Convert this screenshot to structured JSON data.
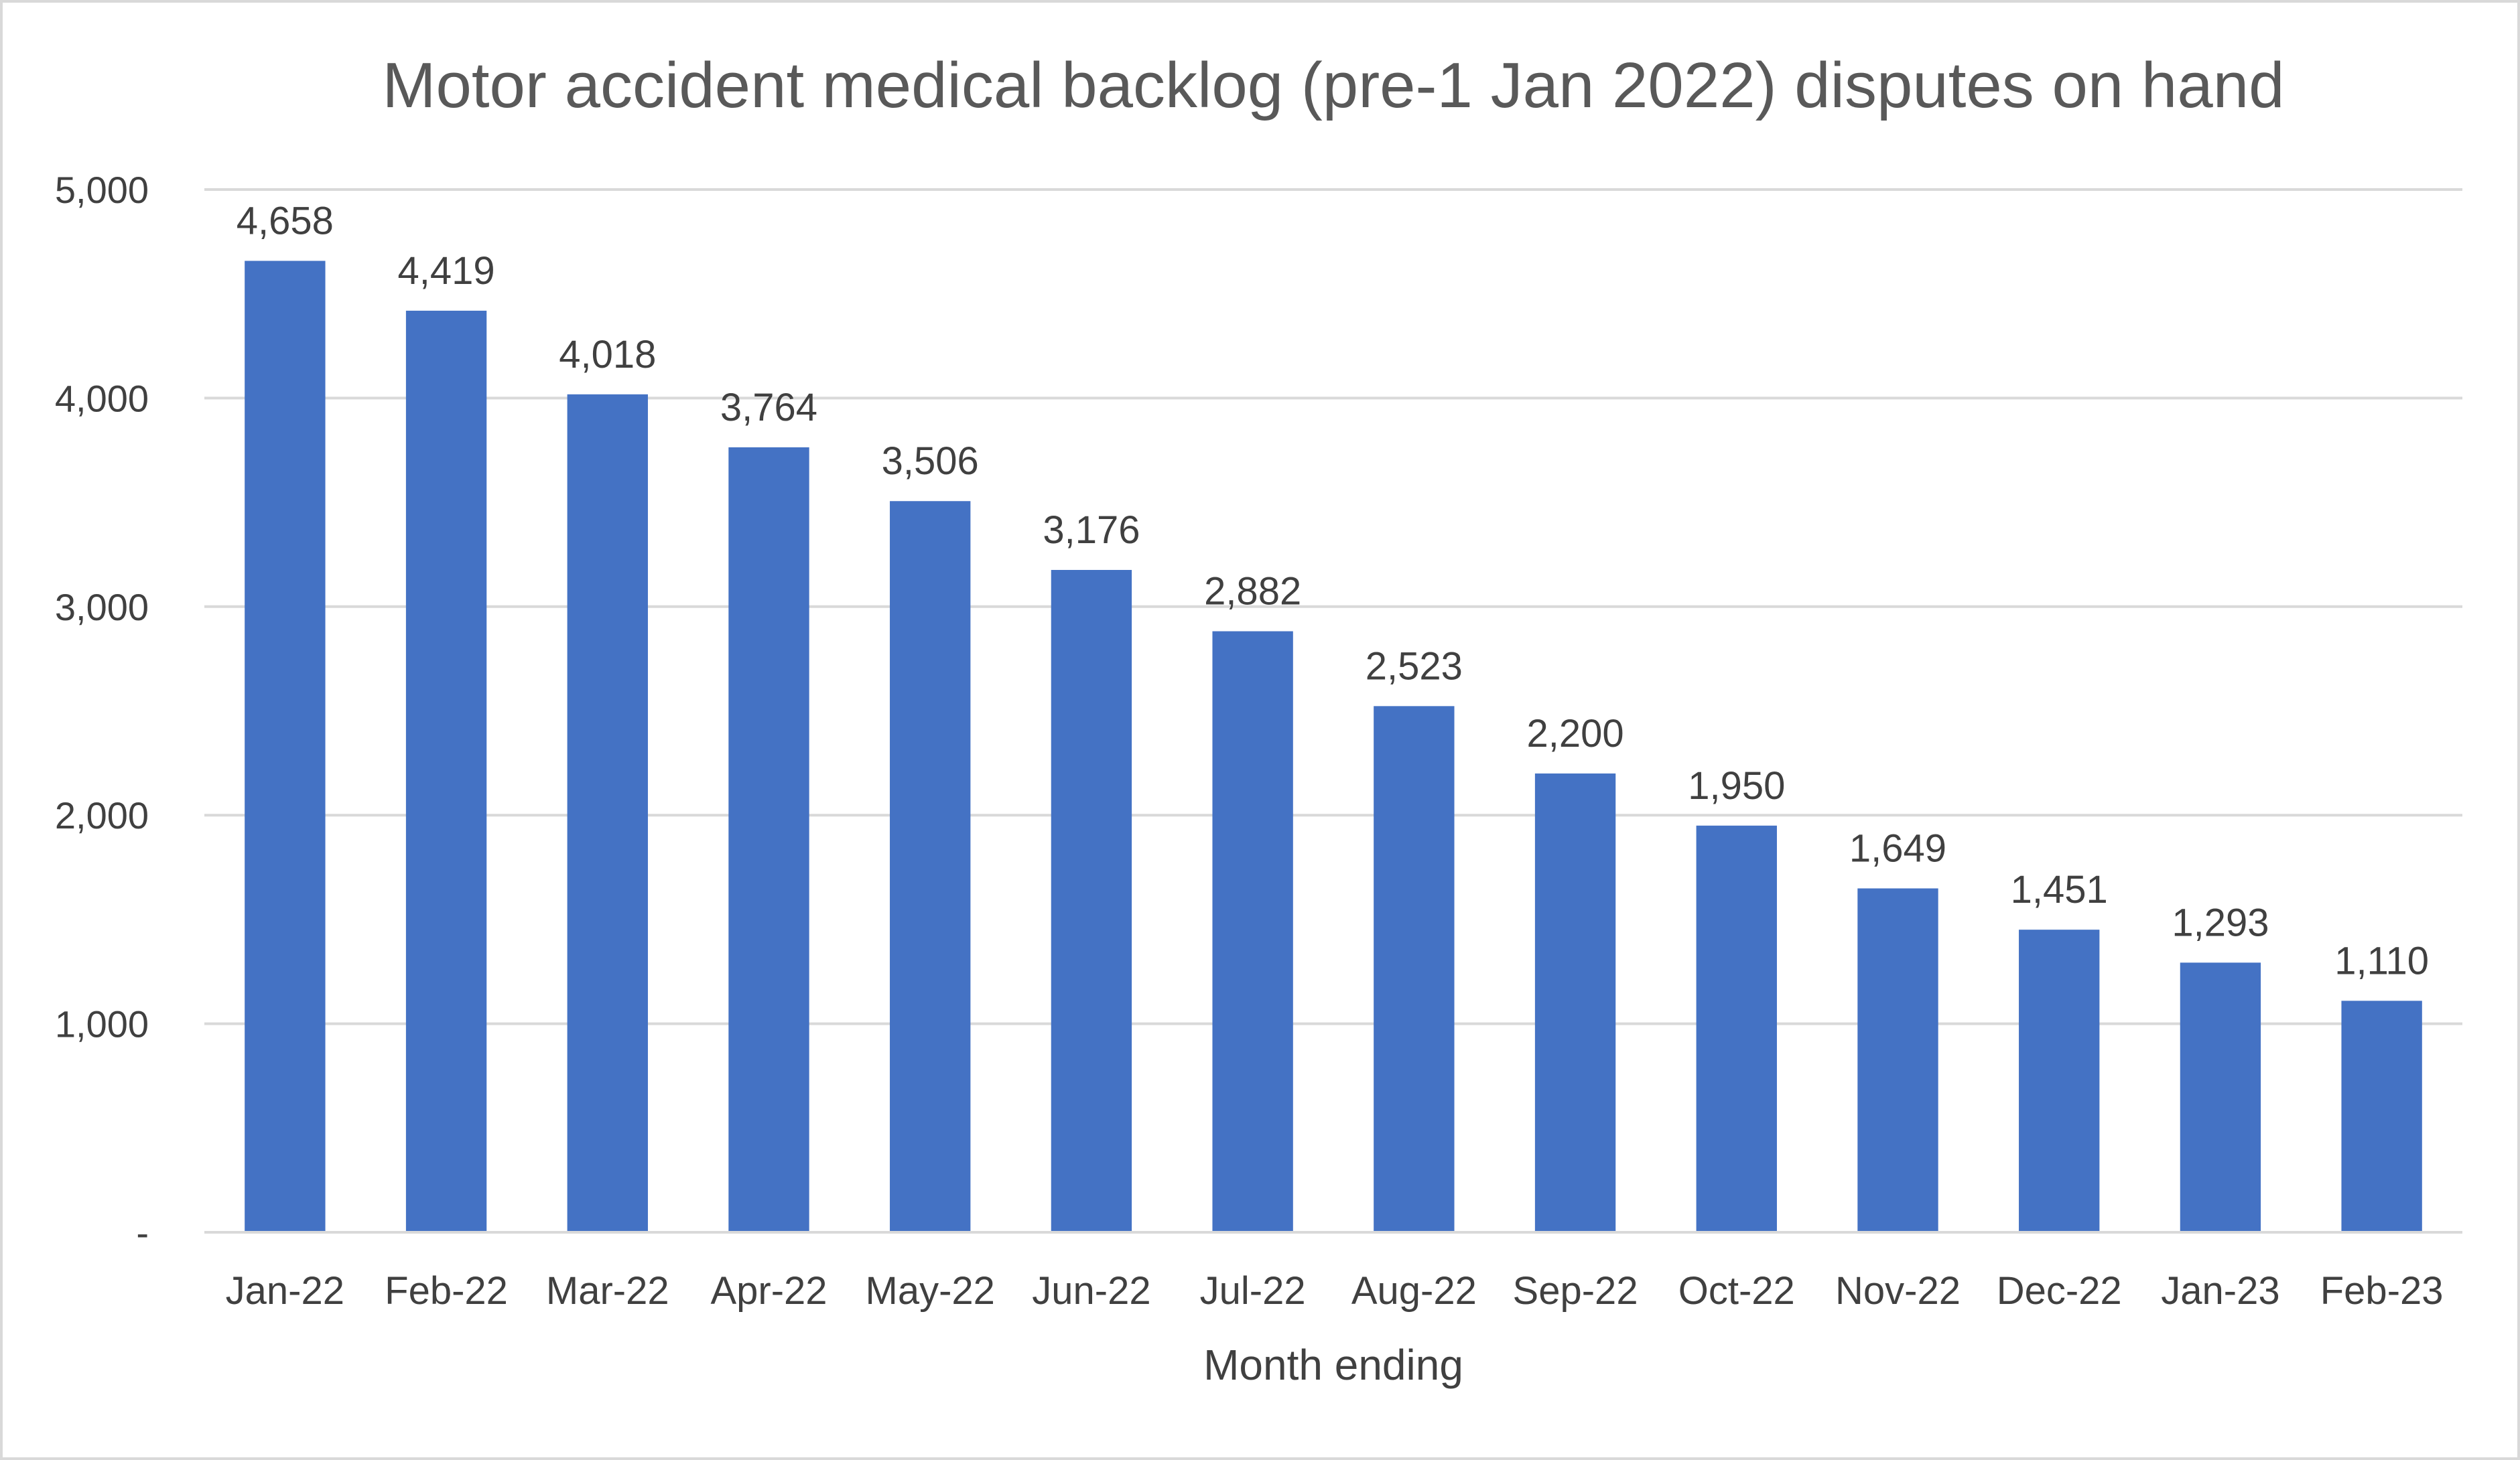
{
  "chart_data": {
    "type": "bar",
    "title": "Motor accident medical backlog (pre-1 Jan 2022) disputes on hand",
    "xlabel": "Month ending",
    "ylabel": "",
    "categories": [
      "Jan-22",
      "Feb-22",
      "Mar-22",
      "Apr-22",
      "May-22",
      "Jun-22",
      "Jul-22",
      "Aug-22",
      "Sep-22",
      "Oct-22",
      "Nov-22",
      "Dec-22",
      "Jan-23",
      "Feb-23"
    ],
    "values": [
      4658,
      4419,
      4018,
      3764,
      3506,
      3176,
      2882,
      2523,
      2200,
      1950,
      1649,
      1451,
      1293,
      1110
    ],
    "data_labels": [
      "4,658",
      "4,419",
      "4,018",
      "3,764",
      "3,506",
      "3,176",
      "2,882",
      "2,523",
      "2,200",
      "1,950",
      "1,649",
      "1,451",
      "1,293",
      "1,110"
    ],
    "ylim": [
      0,
      5000
    ],
    "yticks": [
      0,
      1000,
      2000,
      3000,
      4000,
      5000
    ],
    "ytick_labels": [
      "-",
      "1,000",
      "2,000",
      "3,000",
      "4,000",
      "5,000"
    ],
    "grid": true,
    "legend": "none",
    "bar_color": "#4472C4",
    "gridline_color": "#d9d9d9"
  }
}
